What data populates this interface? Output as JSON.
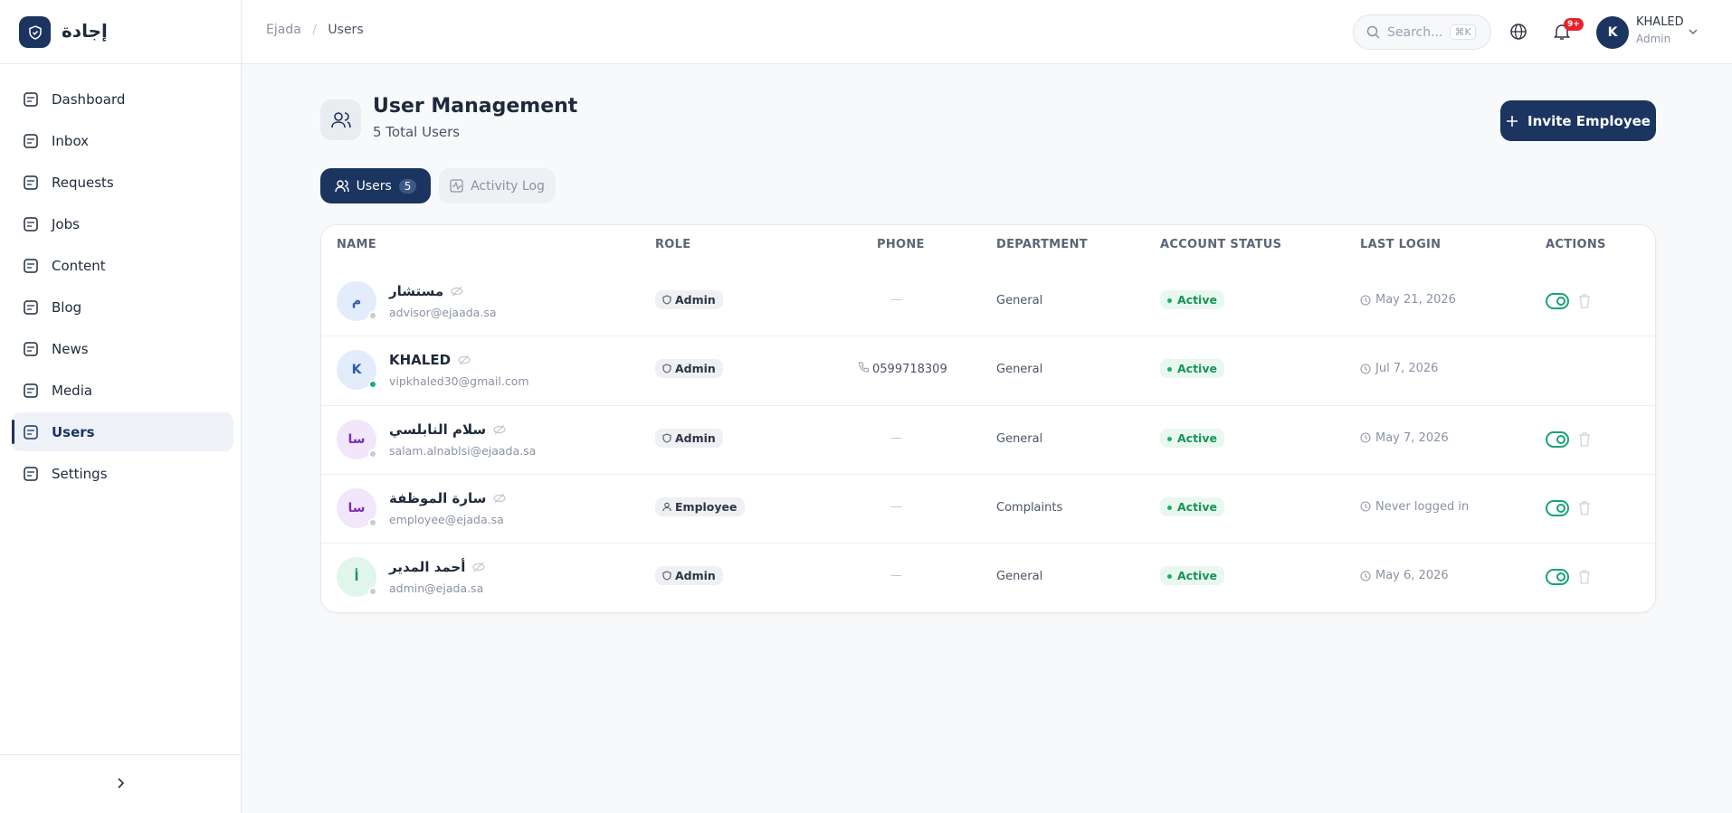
{
  "brand": "إجادة",
  "breadcrumb": [
    "Ejada",
    "Users"
  ],
  "search": {
    "placeholder": "Search...",
    "shortcut": "⌘K"
  },
  "notifications": "9+",
  "user": {
    "initial": "K",
    "name": "KHALED",
    "role": "Admin"
  },
  "nav": [
    "Dashboard",
    "Inbox",
    "Requests",
    "Jobs",
    "Content",
    "Blog",
    "News",
    "Media",
    "Users",
    "Settings"
  ],
  "active_nav": 8,
  "page": {
    "title": "User Management",
    "subtitle": "5 Total Users",
    "invite": "Invite Employee"
  },
  "tabs": {
    "users": "Users",
    "users_count": "5",
    "activity": "Activity Log"
  },
  "table": {
    "headers": [
      "NAME",
      "ROLE",
      "PHONE",
      "DEPARTMENT",
      "ACCOUNT STATUS",
      "LAST LOGIN",
      "ACTIONS"
    ],
    "rows": [
      {
        "initial": "م",
        "avatar_color": "#2f5aa8",
        "avatar_bg": "#e3ecfb",
        "online": false,
        "name": "مستشار",
        "email": "advisor@ejaada.sa",
        "role": "Admin",
        "role_icon": "shield",
        "phone": "—",
        "phone_icon": false,
        "department": "General",
        "status": "Active",
        "last_login": "May 21, 2026",
        "actions": true
      },
      {
        "initial": "K",
        "avatar_color": "#2f5aa8",
        "avatar_bg": "#e3ecfb",
        "online": true,
        "name": "KHALED",
        "email": "vipkhaled30@gmail.com",
        "role": "Admin",
        "role_icon": "shield",
        "phone": "0599718309",
        "phone_icon": true,
        "department": "General",
        "status": "Active",
        "last_login": "Jul 7, 2026",
        "actions": false
      },
      {
        "initial": "سا",
        "avatar_color": "#7b2fb0",
        "avatar_bg": "#f1e6fa",
        "online": false,
        "name": "سلام النابلسي",
        "email": "salam.alnablsi@ejaada.sa",
        "role": "Admin",
        "role_icon": "shield",
        "phone": "—",
        "phone_icon": false,
        "department": "General",
        "status": "Active",
        "last_login": "May 7, 2026",
        "actions": true
      },
      {
        "initial": "سا",
        "avatar_color": "#7b2fb0",
        "avatar_bg": "#f1e6fa",
        "online": false,
        "name": "سارة الموظفة",
        "email": "employee@ejada.sa",
        "role": "Employee",
        "role_icon": "person",
        "phone": "—",
        "phone_icon": false,
        "department": "Complaints",
        "status": "Active",
        "last_login": "Never logged in",
        "actions": true
      },
      {
        "initial": "أ",
        "avatar_color": "#17935a",
        "avatar_bg": "#e0f6ea",
        "online": false,
        "name": "أحمد المدير",
        "email": "admin@ejada.sa",
        "role": "Admin",
        "role_icon": "shield",
        "phone": "—",
        "phone_icon": false,
        "department": "General",
        "status": "Active",
        "last_login": "May 6, 2026",
        "actions": true
      }
    ]
  }
}
